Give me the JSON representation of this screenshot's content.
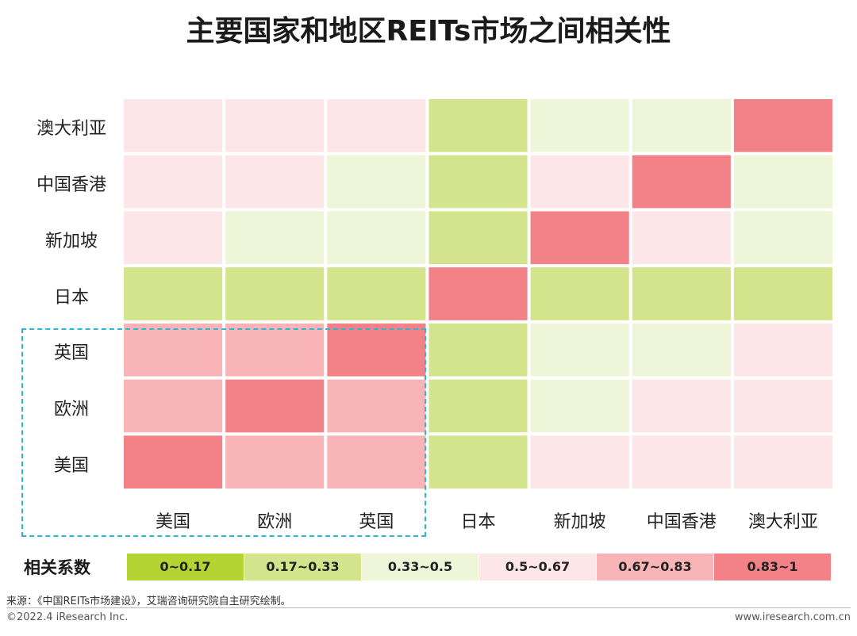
{
  "title": "主要国家和地区REITs市场之间相关性",
  "chart_data": {
    "type": "heatmap",
    "title": "主要国家和地区REITs市场之间相关性",
    "rows": [
      "澳大利亚",
      "中国香港",
      "新加坡",
      "日本",
      "英国",
      "欧洲",
      "美国"
    ],
    "columns": [
      "美国",
      "欧洲",
      "英国",
      "日本",
      "新加坡",
      "中国香港",
      "澳大利亚"
    ],
    "bin_matrix": [
      [
        3,
        3,
        3,
        1,
        2,
        2,
        5
      ],
      [
        3,
        3,
        2,
        1,
        3,
        5,
        2
      ],
      [
        3,
        2,
        2,
        1,
        5,
        3,
        2
      ],
      [
        1,
        1,
        1,
        5,
        1,
        1,
        1
      ],
      [
        4,
        4,
        5,
        1,
        2,
        2,
        3
      ],
      [
        4,
        5,
        4,
        1,
        2,
        3,
        3
      ],
      [
        5,
        4,
        4,
        1,
        3,
        3,
        3
      ]
    ],
    "legend_title": "相关系数",
    "legend": [
      {
        "label": "0~0.17",
        "color": "#b3d433"
      },
      {
        "label": "0.17~0.33",
        "color": "#d3e48c"
      },
      {
        "label": "0.33~0.5",
        "color": "#eef5d8"
      },
      {
        "label": "0.5~0.67",
        "color": "#fde6e7"
      },
      {
        "label": "0.67~0.83",
        "color": "#f8b4b7"
      },
      {
        "label": "0.83~1",
        "color": "#f28287"
      }
    ],
    "cell_colors": [
      "#b3d433",
      "#d3e48c",
      "#eef5d8",
      "#fde6e7",
      "#f8b4b7",
      "#f28287"
    ],
    "highlight": {
      "rows": [
        "英国",
        "欧洲",
        "美国"
      ],
      "columns": [
        "美国",
        "欧洲",
        "英国"
      ],
      "color": "#2ab8d8"
    }
  },
  "footer": {
    "source": "来源：《中国REITs市场建设》，艾瑞咨询研究院自主研究绘制。",
    "copyright": "©2022.4 iResearch Inc.",
    "website": "www.iresearch.com.cn"
  }
}
